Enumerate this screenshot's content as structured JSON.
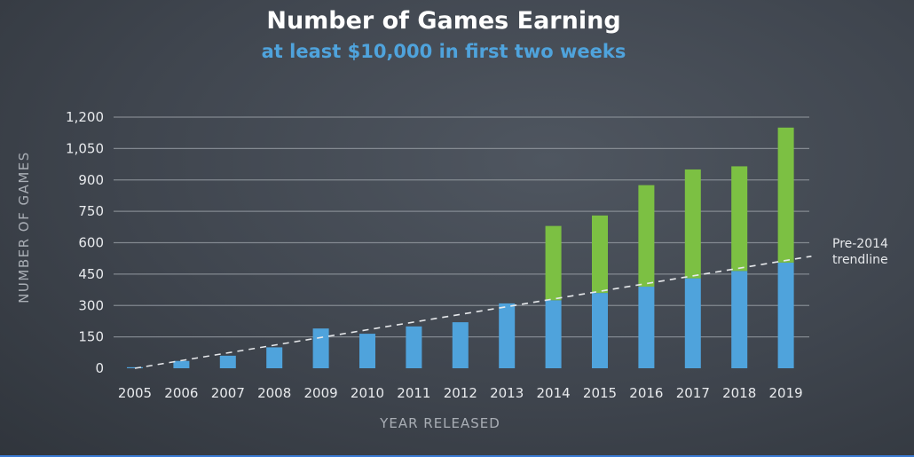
{
  "chart_data": {
    "type": "bar",
    "stacked": true,
    "title": "Number of Games Earning",
    "subtitle": "at least $10,000 in first two weeks",
    "xlabel": "YEAR RELEASED",
    "ylabel": "NUMBER OF GAMES",
    "ylim": [
      0,
      1200
    ],
    "yticks": [
      "0",
      "150",
      "300",
      "450",
      "600",
      "750",
      "900",
      "1,050",
      "1,200"
    ],
    "ytick_values": [
      0,
      150,
      300,
      450,
      600,
      750,
      900,
      1050,
      1200
    ],
    "categories": [
      "2005",
      "2006",
      "2007",
      "2008",
      "2009",
      "2010",
      "2011",
      "2012",
      "2013",
      "2014",
      "2015",
      "2016",
      "2017",
      "2018",
      "2019"
    ],
    "series": [
      {
        "color": "#4fa3dc",
        "values": [
          5,
          35,
          60,
          100,
          190,
          165,
          200,
          220,
          310,
          325,
          360,
          390,
          430,
          465,
          505
        ]
      },
      {
        "color": "#7cc043",
        "values": [
          0,
          0,
          0,
          0,
          0,
          0,
          0,
          0,
          0,
          355,
          370,
          485,
          520,
          500,
          645
        ]
      }
    ],
    "trendline": {
      "label": "Pre-2014 trendline",
      "label_lines": [
        "Pre-2014",
        "trendline"
      ],
      "start": {
        "x": "2005",
        "y": 0
      },
      "end_y_at_2019": 515,
      "extends_past_last": true
    },
    "grid": true,
    "colors": {
      "subtitle": "#4fa3dc",
      "grid": "#8e949b",
      "trend": "#e6e8eb"
    }
  }
}
